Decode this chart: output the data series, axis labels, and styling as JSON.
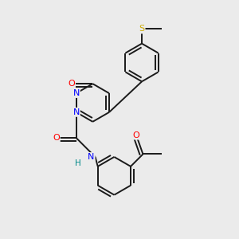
{
  "background_color": "#ebebeb",
  "bond_color": "#1a1a1a",
  "bond_width": 1.4,
  "atom_colors": {
    "N": "#0000ff",
    "O": "#ff0000",
    "S": "#ccaa00",
    "H": "#008888"
  },
  "font_size": 7.5,
  "fig_size": [
    3.0,
    3.0
  ],
  "dpi": 100,
  "xlim": [
    0.0,
    10.0
  ],
  "ylim": [
    0.0,
    10.5
  ]
}
